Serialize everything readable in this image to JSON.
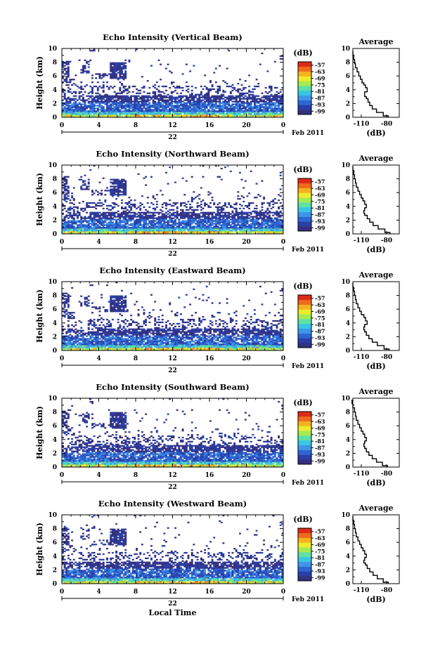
{
  "colors": {
    "scale": [
      "#34307d",
      "#2a3fa8",
      "#2f66d4",
      "#3e96e8",
      "#39c6e3",
      "#5ee0a7",
      "#a6ea52",
      "#ecec2c",
      "#f4b21f",
      "#ef6a1b",
      "#dc2a1a"
    ],
    "line": "#000000"
  },
  "chart_data": [
    {
      "type": "heatmap",
      "title": "Echo Intensity (Vertical Beam)",
      "xlabel": "",
      "ylabel": "Height (km)",
      "x_ticks": [
        "0",
        "4",
        "8",
        "12",
        "16",
        "20",
        "0"
      ],
      "y_ticks": [
        "0",
        "2",
        "4",
        "6",
        "8",
        "10"
      ],
      "xlim": [
        0,
        24
      ],
      "ylim": [
        0,
        10
      ],
      "date_label": "22",
      "month_label": "Feb 2011",
      "colorbar": {
        "unit": "(dB)",
        "ticks": [
          "-57",
          "-63",
          "-69",
          "-75",
          "-81",
          "-87",
          "-93",
          "-99"
        ],
        "range": [
          -102,
          -54
        ]
      },
      "profile": {
        "title": "Average",
        "xlabel": "(dB)",
        "x_ticks": [
          "-110",
          "-80"
        ],
        "xlim": [
          -120,
          -65
        ],
        "y_ticks": [
          "0",
          "2",
          "4",
          "6",
          "8",
          "10"
        ],
        "x": [
          -78,
          -84,
          -92,
          -97,
          -100,
          -102,
          -104,
          -106,
          -106,
          -103,
          -105,
          -107,
          -109,
          -111,
          -113,
          -115,
          -117,
          -118,
          -119,
          -120
        ],
        "y": [
          0.2,
          0.7,
          1.2,
          1.7,
          2.2,
          2.7,
          3.0,
          3.3,
          3.7,
          4.3,
          4.7,
          5.0,
          5.5,
          6.0,
          6.6,
          7.2,
          7.8,
          8.4,
          9.0,
          9.6
        ]
      }
    },
    {
      "type": "heatmap",
      "title": "Echo Intensity (Northward Beam)",
      "xlabel": "",
      "ylabel": "Height (km)",
      "x_ticks": [
        "0",
        "4",
        "8",
        "12",
        "16",
        "20",
        "0"
      ],
      "y_ticks": [
        "0",
        "2",
        "4",
        "6",
        "8",
        "10"
      ],
      "xlim": [
        0,
        24
      ],
      "ylim": [
        0,
        10
      ],
      "date_label": "22",
      "month_label": "Feb 2011",
      "colorbar": {
        "unit": "(dB)",
        "ticks": [
          "-57",
          "-63",
          "-69",
          "-75",
          "-81",
          "-87",
          "-93",
          "-99"
        ],
        "range": [
          -102,
          -54
        ]
      },
      "profile": {
        "title": "Average",
        "xlabel": "(dB)",
        "x_ticks": [
          "-110",
          "-80"
        ],
        "xlim": [
          -120,
          -65
        ],
        "y_ticks": [
          "0",
          "2",
          "4",
          "6",
          "8",
          "10"
        ],
        "x": [
          -76,
          -82,
          -90,
          -96,
          -100,
          -103,
          -106,
          -107,
          -106,
          -104,
          -106,
          -108,
          -110,
          -112,
          -114,
          -116,
          -117,
          -118,
          -119,
          -120
        ],
        "y": [
          0.2,
          0.7,
          1.2,
          1.7,
          2.2,
          2.7,
          3.0,
          3.4,
          3.8,
          4.3,
          4.8,
          5.2,
          5.7,
          6.2,
          6.8,
          7.4,
          8.0,
          8.6,
          9.2,
          9.8
        ]
      }
    },
    {
      "type": "heatmap",
      "title": "Echo Intensity (Eastward Beam)",
      "xlabel": "",
      "ylabel": "Height (km)",
      "x_ticks": [
        "0",
        "4",
        "8",
        "12",
        "16",
        "20",
        "0"
      ],
      "y_ticks": [
        "0",
        "2",
        "4",
        "6",
        "8",
        "10"
      ],
      "xlim": [
        0,
        24
      ],
      "ylim": [
        0,
        10
      ],
      "date_label": "22",
      "month_label": "Feb 2011",
      "colorbar": {
        "unit": "(dB)",
        "ticks": [
          "-57",
          "-63",
          "-69",
          "-75",
          "-81",
          "-87",
          "-93",
          "-99"
        ],
        "range": [
          -102,
          -54
        ]
      },
      "profile": {
        "title": "Average",
        "xlabel": "(dB)",
        "x_ticks": [
          "-110",
          "-80"
        ],
        "xlim": [
          -120,
          -65
        ],
        "y_ticks": [
          "0",
          "2",
          "4",
          "6",
          "8",
          "10"
        ],
        "x": [
          -77,
          -83,
          -91,
          -97,
          -101,
          -104,
          -106,
          -107,
          -106,
          -103,
          -105,
          -107,
          -110,
          -112,
          -114,
          -116,
          -117,
          -118,
          -119,
          -120
        ],
        "y": [
          0.2,
          0.7,
          1.2,
          1.7,
          2.2,
          2.7,
          3.0,
          3.4,
          3.8,
          4.3,
          4.8,
          5.2,
          5.7,
          6.2,
          6.8,
          7.4,
          8.0,
          8.6,
          9.2,
          9.8
        ]
      }
    },
    {
      "type": "heatmap",
      "title": "Echo Intensity (Southward Beam)",
      "xlabel": "",
      "ylabel": "Height (km)",
      "x_ticks": [
        "0",
        "4",
        "8",
        "12",
        "16",
        "20",
        "0"
      ],
      "y_ticks": [
        "0",
        "2",
        "4",
        "6",
        "8",
        "10"
      ],
      "xlim": [
        0,
        24
      ],
      "ylim": [
        0,
        10
      ],
      "date_label": "22",
      "month_label": "Feb 2011",
      "colorbar": {
        "unit": "(dB)",
        "ticks": [
          "-57",
          "-63",
          "-69",
          "-75",
          "-81",
          "-87",
          "-93",
          "-99"
        ],
        "range": [
          -102,
          -54
        ]
      },
      "profile": {
        "title": "Average",
        "xlabel": "(dB)",
        "x_ticks": [
          "-110",
          "-80"
        ],
        "xlim": [
          -120,
          -65
        ],
        "y_ticks": [
          "0",
          "2",
          "4",
          "6",
          "8",
          "10"
        ],
        "x": [
          -79,
          -85,
          -92,
          -97,
          -101,
          -104,
          -106,
          -107,
          -106,
          -104,
          -106,
          -108,
          -110,
          -112,
          -114,
          -116,
          -117,
          -118,
          -120,
          -121
        ],
        "y": [
          0.2,
          0.7,
          1.2,
          1.7,
          2.2,
          2.7,
          3.0,
          3.4,
          3.8,
          4.3,
          4.8,
          5.2,
          5.7,
          6.2,
          6.8,
          7.4,
          8.0,
          8.6,
          9.2,
          9.8
        ]
      }
    },
    {
      "type": "heatmap",
      "title": "Echo Intensity (Westward Beam)",
      "xlabel": "Local Time",
      "ylabel": "Height (km)",
      "x_ticks": [
        "0",
        "4",
        "8",
        "12",
        "16",
        "20",
        "0"
      ],
      "y_ticks": [
        "0",
        "2",
        "4",
        "6",
        "8",
        "10"
      ],
      "xlim": [
        0,
        24
      ],
      "ylim": [
        0,
        10
      ],
      "date_label": "22",
      "month_label": "Feb 2011",
      "colorbar": {
        "unit": "(dB)",
        "ticks": [
          "-57",
          "-63",
          "-69",
          "-75",
          "-81",
          "-87",
          "-93",
          "-99"
        ],
        "range": [
          -102,
          -54
        ]
      },
      "profile": {
        "title": "Average",
        "xlabel": "(dB)",
        "x_ticks": [
          "-110",
          "-80"
        ],
        "xlim": [
          -120,
          -65
        ],
        "y_ticks": [
          "0",
          "2",
          "4",
          "6",
          "8",
          "10"
        ],
        "x": [
          -78,
          -84,
          -91,
          -96,
          -100,
          -103,
          -105,
          -107,
          -106,
          -104,
          -106,
          -108,
          -110,
          -112,
          -114,
          -116,
          -117,
          -118,
          -119,
          -120
        ],
        "y": [
          0.2,
          0.7,
          1.2,
          1.7,
          2.2,
          2.7,
          3.0,
          3.4,
          3.8,
          4.3,
          4.8,
          5.2,
          5.7,
          6.2,
          6.8,
          7.4,
          8.0,
          8.6,
          9.2,
          9.8
        ]
      }
    }
  ]
}
